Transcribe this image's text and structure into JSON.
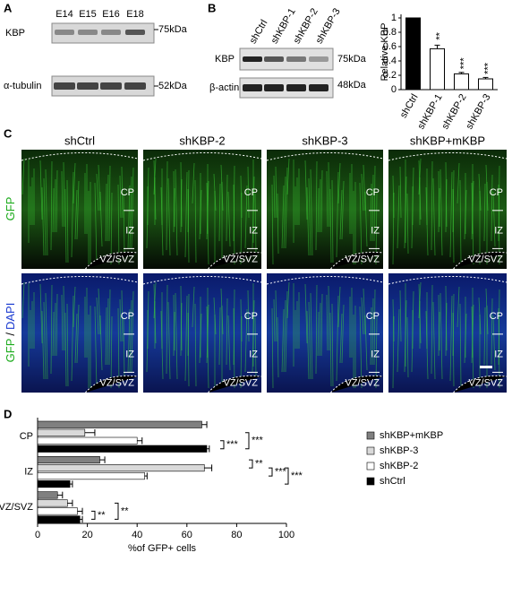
{
  "panels": {
    "a": "A",
    "b": "B",
    "c": "C",
    "d": "D"
  },
  "blot_a": {
    "lanes": [
      "E14",
      "E15",
      "E16",
      "E18"
    ],
    "rows": [
      "KBP",
      "α-tubulin"
    ],
    "sizes": [
      "75kDa",
      "52kDa"
    ]
  },
  "blot_b": {
    "lanes": [
      "shCtrl",
      "shKBP-1",
      "shKBP-2",
      "shKBP-3"
    ],
    "rows": [
      "KBP",
      "β-actin"
    ],
    "sizes": [
      "75kDa",
      "48kDa"
    ]
  },
  "micrographs": {
    "columns": [
      "shCtrl",
      "shKBP-2",
      "shKBP-3",
      "shKBP+mKBP"
    ],
    "row_labels": [
      {
        "gfp": "GFP"
      },
      {
        "gfp": "GFP",
        "sep": "/",
        "dapi": "DAPI"
      }
    ],
    "regions": [
      "CP",
      "IZ",
      "VZ/SVZ"
    ]
  },
  "chart_data": [
    {
      "type": "bar",
      "y_label": "Relative KBP",
      "categories": [
        "shCtrl",
        "shKBP-1",
        "shKBP-2",
        "shKBP-3"
      ],
      "values": [
        1,
        0.57,
        0.22,
        0.15
      ],
      "errors": [
        0,
        0.05,
        0.02,
        0.02
      ],
      "colors": [
        "#000000",
        "#ffffff",
        "#ffffff",
        "#ffffff"
      ],
      "significance": [
        null,
        "**",
        "***",
        "***"
      ],
      "ylim": [
        0,
        1.05
      ],
      "yticks": [
        0,
        0.2,
        0.4,
        0.6,
        0.8,
        1
      ]
    },
    {
      "type": "hbar",
      "x_label": "%of GFP+ cells",
      "categories": [
        "CP",
        "IZ",
        "VZ/SVZ"
      ],
      "series": [
        {
          "name": "shKBP+mKBP",
          "color": "#808080",
          "values": [
            66,
            25,
            8
          ],
          "errors": [
            2,
            2,
            2
          ]
        },
        {
          "name": "shKBP-3",
          "color": "#d9d9d9",
          "values": [
            19,
            67,
            12
          ],
          "errors": [
            4,
            3,
            2
          ]
        },
        {
          "name": "shKBP-2",
          "color": "#ffffff",
          "values": [
            40,
            43,
            16
          ],
          "errors": [
            2,
            1,
            2
          ]
        },
        {
          "name": "shCtrl",
          "color": "#000000",
          "values": [
            68,
            13,
            17
          ],
          "errors": [
            1,
            1,
            1
          ]
        }
      ],
      "annotations": [
        "***",
        "***",
        "**",
        "***",
        "***",
        "**",
        "**"
      ],
      "xlim": [
        0,
        100
      ],
      "xticks": [
        0,
        20,
        40,
        60,
        80,
        100
      ]
    }
  ]
}
